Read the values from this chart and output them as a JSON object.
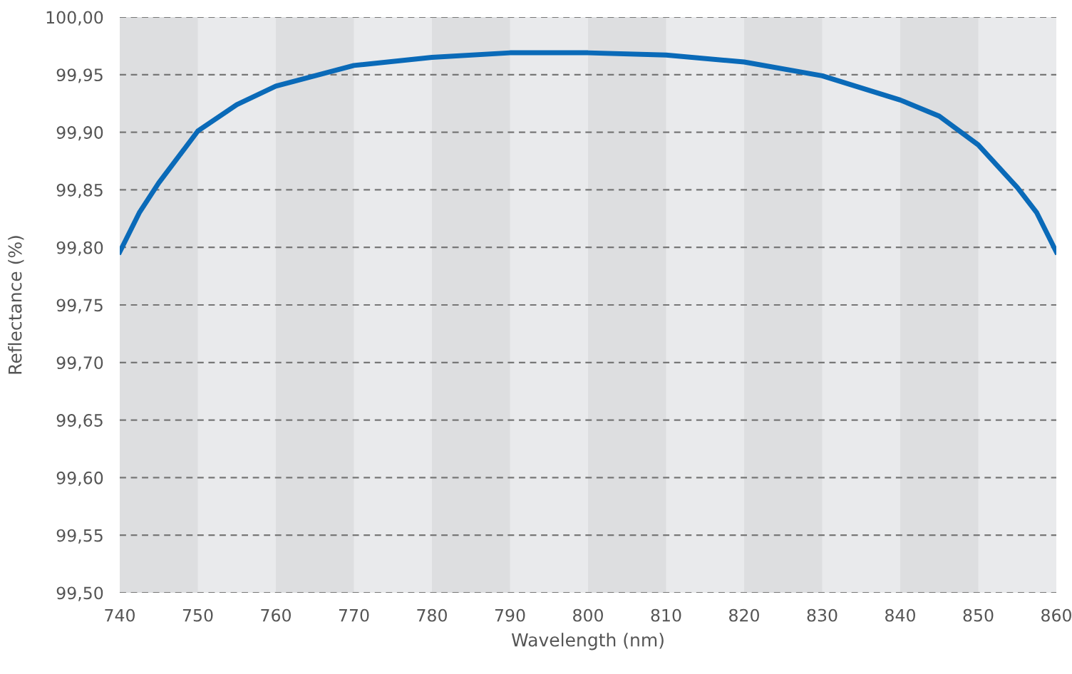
{
  "chart_data": {
    "type": "line",
    "xlabel": "Wavelength (nm)",
    "ylabel": "Reflectance (%)",
    "x": [
      740,
      742.5,
      745,
      750,
      755,
      760,
      770,
      780,
      790,
      800,
      810,
      820,
      830,
      840,
      845,
      850,
      855,
      857.5,
      860
    ],
    "series": [
      {
        "color": "#0a6ab8",
        "values": [
          99.796,
          99.83,
          99.856,
          99.901,
          99.924,
          99.94,
          99.958,
          99.965,
          99.969,
          99.969,
          99.967,
          99.961,
          99.949,
          99.928,
          99.914,
          99.889,
          99.852,
          99.83,
          99.796
        ]
      }
    ],
    "xlim": [
      740,
      860
    ],
    "ylim": [
      99.5,
      100
    ],
    "xticks": [
      740,
      750,
      760,
      770,
      780,
      790,
      800,
      810,
      820,
      830,
      840,
      850,
      860
    ],
    "yticks": [
      {
        "value": 99.5,
        "label": "99,50"
      },
      {
        "value": 99.55,
        "label": "99,55"
      },
      {
        "value": 99.6,
        "label": "99,60"
      },
      {
        "value": 99.65,
        "label": "99,65"
      },
      {
        "value": 99.7,
        "label": "99,70"
      },
      {
        "value": 99.75,
        "label": "99,75"
      },
      {
        "value": 99.8,
        "label": "99,80"
      },
      {
        "value": 99.85,
        "label": "99,85"
      },
      {
        "value": 99.9,
        "label": "99,90"
      },
      {
        "value": 99.95,
        "label": "99,95"
      },
      {
        "value": 100,
        "label": "100,00"
      }
    ],
    "bands": [
      {
        "axis": "x",
        "from": 740,
        "to": 750,
        "color": "#dddee0"
      },
      {
        "axis": "x",
        "from": 760,
        "to": 770,
        "color": "#dddee0"
      },
      {
        "axis": "x",
        "from": 780,
        "to": 790,
        "color": "#dddee0"
      },
      {
        "axis": "x",
        "from": 800,
        "to": 810,
        "color": "#dddee0"
      },
      {
        "axis": "x",
        "from": 820,
        "to": 830,
        "color": "#dddee0"
      },
      {
        "axis": "x",
        "from": 840,
        "to": 850,
        "color": "#dddee0"
      }
    ],
    "grid": "y",
    "line_style": "solid",
    "marker": "none"
  }
}
